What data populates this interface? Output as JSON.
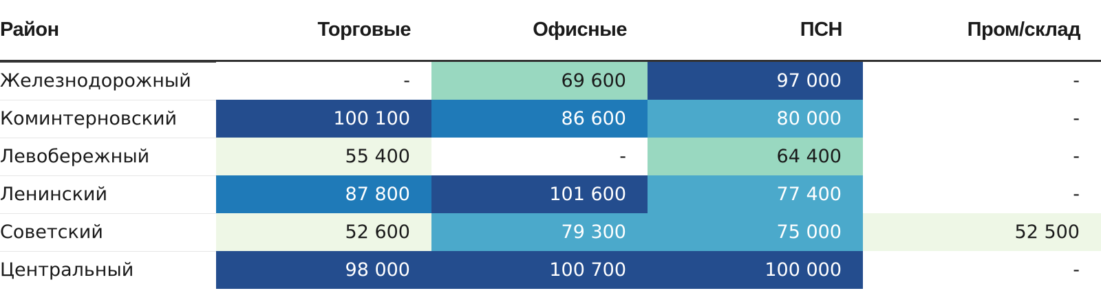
{
  "chart_data": {
    "type": "table",
    "columns": [
      "Район",
      "Торговые",
      "Офисные",
      "ПСН",
      "Пром/склад"
    ],
    "rows": [
      {
        "name": "Железнодорожный",
        "values": [
          "-",
          "69 600",
          "97 000",
          "-"
        ]
      },
      {
        "name": "Коминтерновский",
        "values": [
          "100 100",
          "86 600",
          "80 000",
          "-"
        ]
      },
      {
        "name": "Левобережный",
        "values": [
          "55 400",
          "-",
          "64 400",
          "-"
        ]
      },
      {
        "name": "Ленинский",
        "values": [
          "87 800",
          "101 600",
          "77 400",
          "-"
        ]
      },
      {
        "name": "Советский",
        "values": [
          "52 600",
          "79 300",
          "75 000",
          "52 500"
        ]
      },
      {
        "name": "Центральный",
        "values": [
          "98 000",
          "100 700",
          "100 000",
          "-"
        ]
      }
    ],
    "color_scale": [
      {
        "min": 50000,
        "max": 60000,
        "color": "#eef7e6",
        "text": "#1a1a1a"
      },
      {
        "min": 60000,
        "max": 70000,
        "color": "#99d8c0",
        "text": "#1a1a1a"
      },
      {
        "min": 70000,
        "max": 81000,
        "color": "#4ba9cb",
        "text": "#ffffff"
      },
      {
        "min": 81000,
        "max": 95000,
        "color": "#1f7ab8",
        "text": "#ffffff"
      },
      {
        "min": 95000,
        "max": 200000,
        "color": "#244d8e",
        "text": "#ffffff"
      }
    ],
    "empty_color": "#ffffff"
  }
}
